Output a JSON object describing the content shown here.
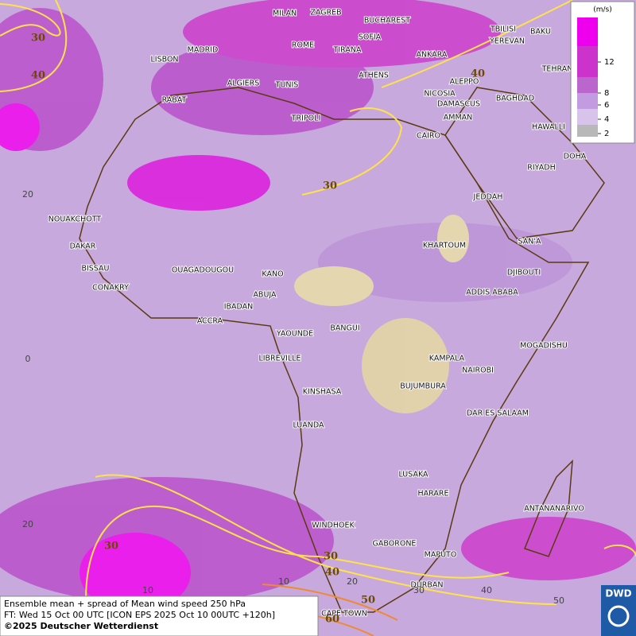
{
  "map": {
    "cities": [
      "MILAN",
      "ZAGREB",
      "BUCHAREST",
      "TBILISI",
      "BAKU",
      "LISBON",
      "MADRID",
      "ROME",
      "SOFIA",
      "YEREVAN",
      "TIRANA",
      "ANKARA",
      "TEHRAN",
      "ALGIERS",
      "TUNIS",
      "ATHENS",
      "ALEPPO",
      "RABAT",
      "NICOSIA",
      "BAGHDAD",
      "DAMASCUS",
      "TRIPOLI",
      "AMMAN",
      "HAWALLI",
      "CAIRO",
      "DOHA",
      "RIYADH",
      "JEDDAH",
      "NOUAKCHOTT",
      "SAN'A",
      "KHARTOUM",
      "DAKAR",
      "BISSAU",
      "OUAGADOUGOU",
      "DJIBOUTI",
      "KANO",
      "CONAKRY",
      "ABUJA",
      "ADDIS ABABA",
      "IBADAN",
      "ACCRA",
      "BANGUI",
      "YAOUNDE",
      "MOGADISHU",
      "LIBREVILLE",
      "KAMPALA",
      "NAIROBI",
      "BUJUMBURA",
      "KINSHASA",
      "DAR ES SALAAM",
      "LUANDA",
      "LUSAKA",
      "HARARE",
      "ANTANANARIVO",
      "WINDHOEK",
      "GABORONE",
      "MAPUTO",
      "DURBAN",
      "CAPE TOWN"
    ],
    "contour_labels": [
      30,
      40,
      40,
      30,
      30,
      30,
      40,
      50,
      60
    ],
    "lat_labels": [
      20,
      0,
      20
    ],
    "lon_labels": [
      10,
      10,
      20,
      30,
      40,
      50
    ],
    "legend": {
      "unit": "(m/s)",
      "ticks": [
        12,
        8,
        6,
        4,
        2
      ],
      "colors": [
        "#ee00ee",
        "#cc33cc",
        "#bb66cc",
        "#c39be0",
        "#d8c4ea",
        "#b8b8b8"
      ]
    },
    "footer": [
      "Ensemble mean + spread of Mean wind speed 250 hPa",
      "FT: Wed 15 Oct 00 UTC [ICON EPS 2025 Oct 10 00UTC +120h]",
      "©2025 Deutscher Wetterdienst"
    ],
    "logo": "DWD"
  }
}
